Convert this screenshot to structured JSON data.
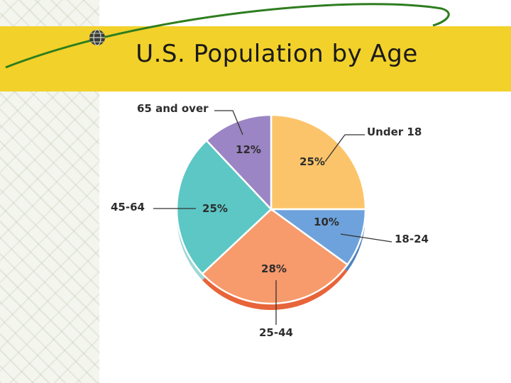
{
  "slide": {
    "title": "U.S. Population by Age"
  },
  "colors": {
    "title_band": "#f2d12a",
    "curve": "#2e7d1f"
  },
  "icons": {
    "bullet": "globe-icon"
  },
  "chart_data": {
    "type": "pie",
    "title": "",
    "slices": [
      {
        "label": "Under 18",
        "value": 25,
        "value_label": "25%",
        "color": "#fcc46a",
        "side": "#e0a04a"
      },
      {
        "label": "18-24",
        "value": 10,
        "value_label": "10%",
        "color": "#6ea2dc",
        "side": "#4f82bd"
      },
      {
        "label": "25-44",
        "value": 28,
        "value_label": "28%",
        "color": "#f79a6c",
        "side": "#e8643a"
      },
      {
        "label": "45-64",
        "value": 25,
        "value_label": "25%",
        "color": "#5cc7c4",
        "side": "#9fd8d5"
      },
      {
        "label": "65 and over",
        "value": 12,
        "value_label": "12%",
        "color": "#9b85c4",
        "side": "#7d68a8"
      }
    ],
    "start_angle_deg": 0,
    "direction": "clockwise",
    "legend": "callout-labels"
  }
}
